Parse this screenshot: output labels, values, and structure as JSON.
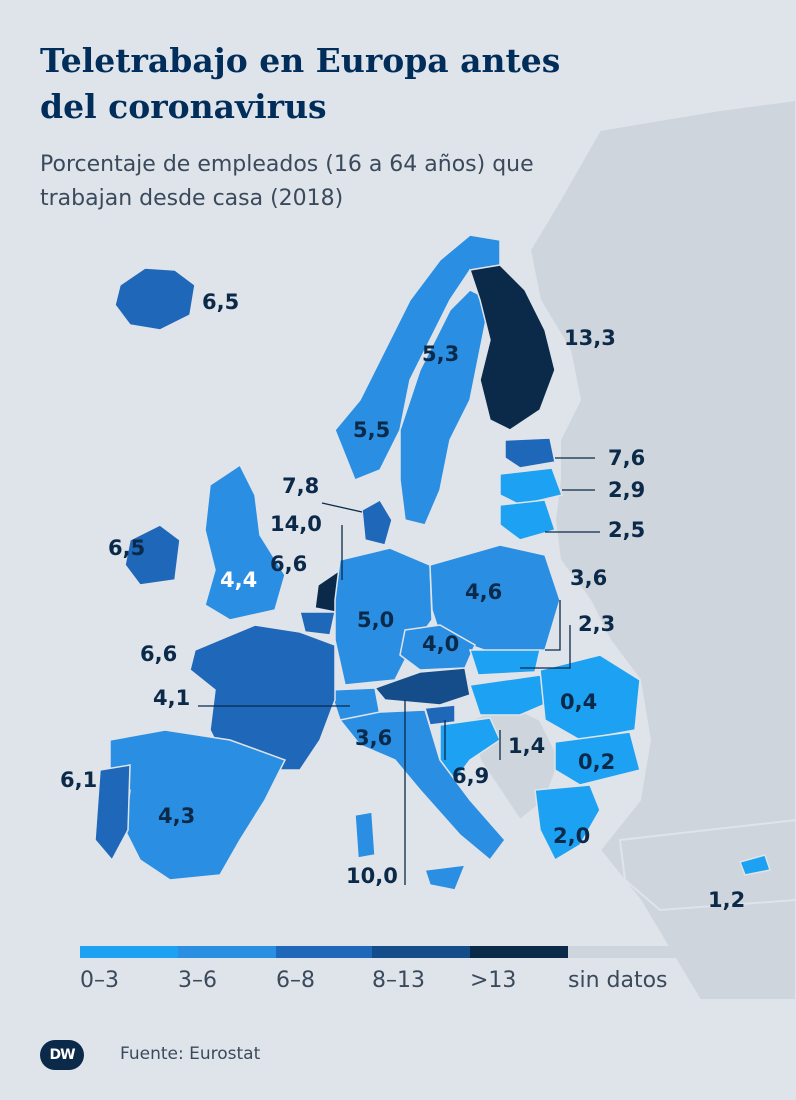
{
  "title": "Teletrabajo en Europa antes del coronavirus",
  "subtitle": "Porcentaje de empleados (16 a 64 años) que trabajan desde casa (2018)",
  "colors": {
    "c0_3": "#1da1f2",
    "c3_6": "#2a8ee3",
    "c6_8": "#1f67b9",
    "c8_13": "#154c8a",
    "c13": "#0b2a4a",
    "nodata": "#cfd5dc",
    "sea": "#dfe4ea"
  },
  "countries": [
    {
      "name": "Islandia",
      "value": "6,5"
    },
    {
      "name": "Noruega",
      "value": "5,3"
    },
    {
      "name": "Suecia",
      "value": "5,5"
    },
    {
      "name": "Finlandia",
      "value": "13,3"
    },
    {
      "name": "Estonia",
      "value": "7,6"
    },
    {
      "name": "Letonia",
      "value": "2,9"
    },
    {
      "name": "Lituania",
      "value": "2,5"
    },
    {
      "name": "Dinamarca",
      "value": "7,8"
    },
    {
      "name": "Países Bajos",
      "value": "14,0"
    },
    {
      "name": "Bélgica",
      "value": "6,6"
    },
    {
      "name": "Irlanda",
      "value": "6,5"
    },
    {
      "name": "Reino Unido",
      "value": "4,4"
    },
    {
      "name": "Polonia",
      "value": "4,6"
    },
    {
      "name": "Alemania",
      "value": "5,0"
    },
    {
      "name": "República Checa",
      "value": "4,0"
    },
    {
      "name": "Eslovaquia",
      "value": "3,6"
    },
    {
      "name": "Hungría",
      "value": "2,3"
    },
    {
      "name": "Francia",
      "value": "6,6"
    },
    {
      "name": "Luxemburgo",
      "value": "4,1"
    },
    {
      "name": "Rumania",
      "value": "0,4"
    },
    {
      "name": "Bulgaria",
      "value": "0,2"
    },
    {
      "name": "Suiza",
      "value": "3,6"
    },
    {
      "name": "Croacia",
      "value": "1,4"
    },
    {
      "name": "Eslovenia",
      "value": "6,9"
    },
    {
      "name": "Portugal",
      "value": "6,1"
    },
    {
      "name": "España",
      "value": "4,3"
    },
    {
      "name": "Grecia",
      "value": "2,0"
    },
    {
      "name": "Austria",
      "value": "10,0"
    },
    {
      "name": "Chipre",
      "value": "1,2"
    }
  ],
  "legend": [
    {
      "label": "0–3",
      "color": "#1da1f2"
    },
    {
      "label": "3–6",
      "color": "#2a8ee3"
    },
    {
      "label": "6–8",
      "color": "#1f67b9"
    },
    {
      "label": "8–13",
      "color": "#154c8a"
    },
    {
      "label": ">13",
      "color": "#0b2a4a"
    },
    {
      "label": "sin datos",
      "color": "#cfd5dc"
    }
  ],
  "source": "Fuente: Eurostat",
  "logo_text": "DW"
}
